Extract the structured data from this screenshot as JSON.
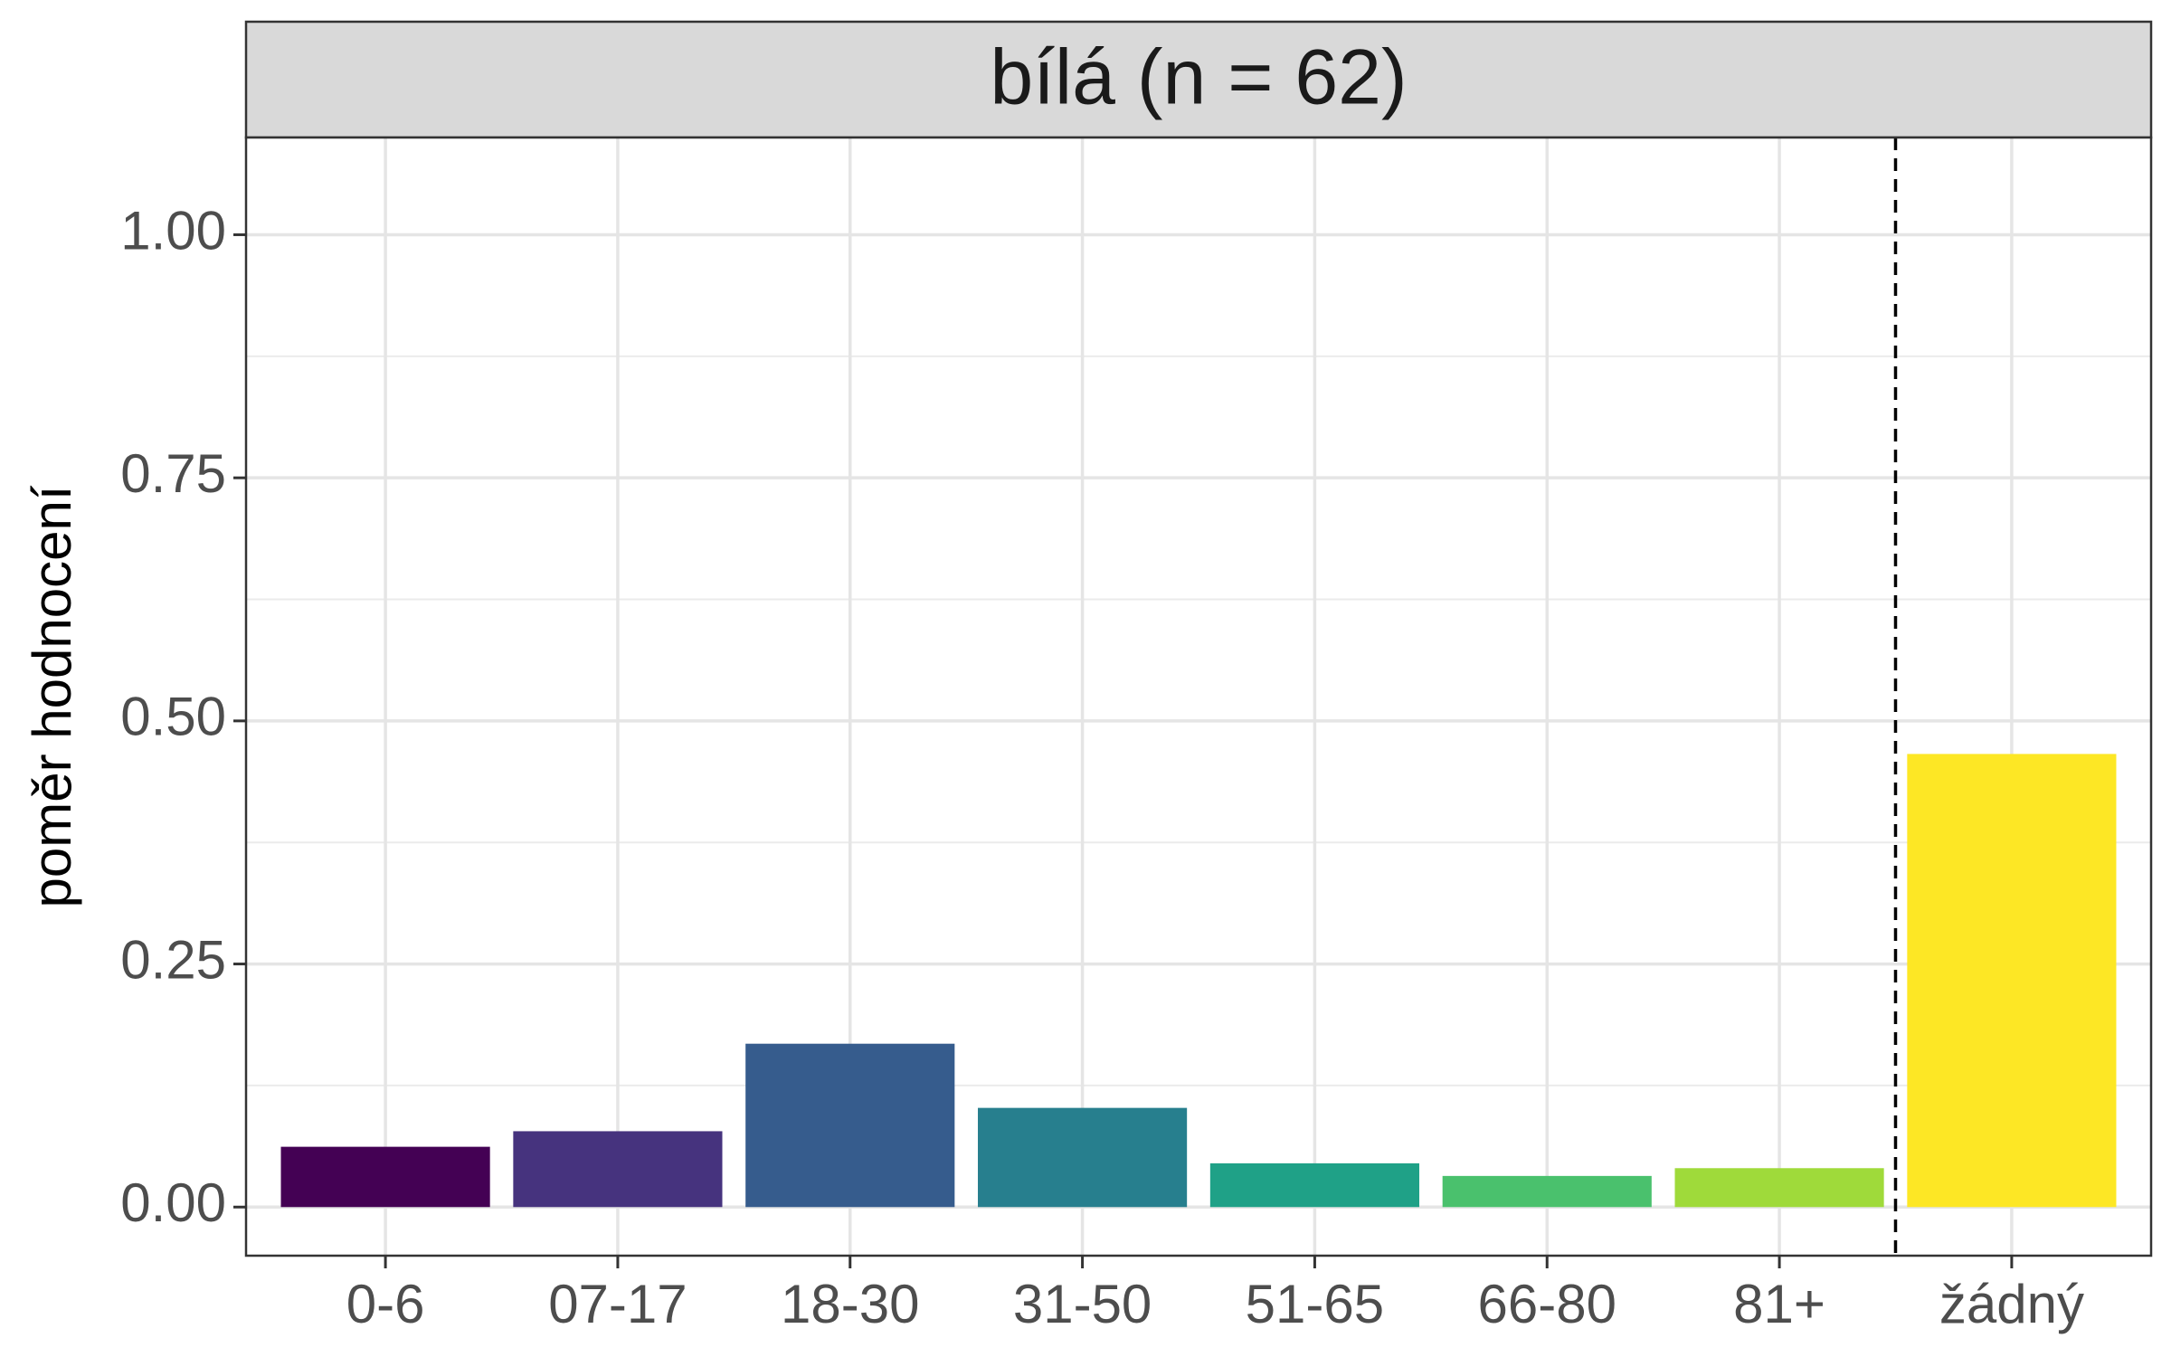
{
  "chart_data": {
    "type": "bar",
    "facet_title": "bílá (n = 62)",
    "title": "",
    "xlabel": "",
    "ylabel": "poměr hodnocení",
    "categories": [
      "0-6",
      "07-17",
      "18-30",
      "31-50",
      "51-65",
      "66-80",
      "81+",
      "žádný"
    ],
    "values": [
      0.062,
      0.078,
      0.168,
      0.102,
      0.045,
      0.032,
      0.04,
      0.466
    ],
    "colors": [
      "#440154",
      "#46337E",
      "#365C8D",
      "#277F8E",
      "#1FA187",
      "#4AC16D",
      "#9FDA3A",
      "#FDE725"
    ],
    "ylim": [
      -0.05,
      1.1
    ],
    "yticks": [
      "0.00",
      "0.25",
      "0.50",
      "0.75",
      "1.00"
    ],
    "ytick_values": [
      0,
      0.25,
      0.5,
      0.75,
      1.0
    ],
    "reference_line": "dashed vertical line between 81+ and žádný",
    "grid": true,
    "legend": "none"
  }
}
